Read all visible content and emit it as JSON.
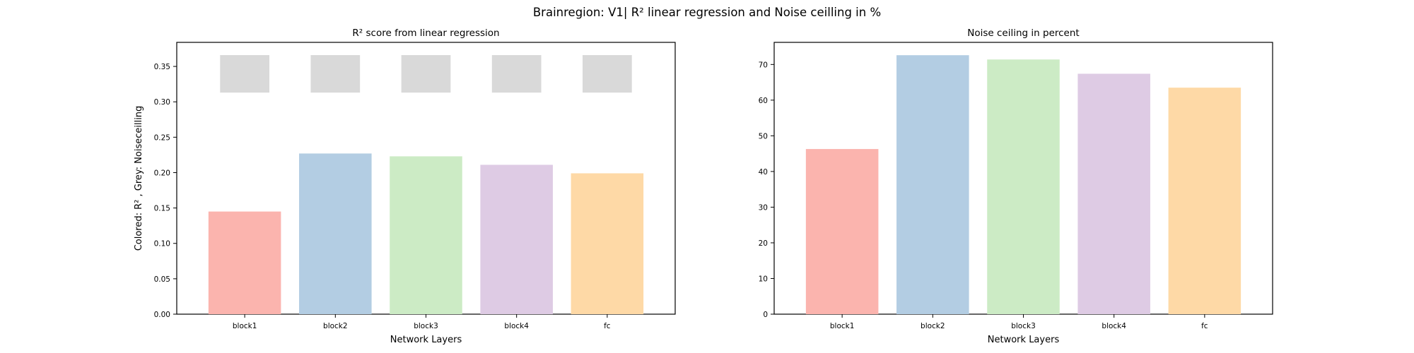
{
  "suptitle": "Brainregion: V1| R² linear regression and Noise ceilling in %",
  "chart_data": [
    {
      "type": "bar",
      "title": "R² score from linear regression",
      "xlabel": "Network Layers",
      "ylabel": "Colored: R² , Grey: Noiseceilling",
      "categories": [
        "block1",
        "block2",
        "block3",
        "block4",
        "fc"
      ],
      "series": [
        {
          "name": "",
          "role": "R²",
          "values": [
            0.145,
            0.227,
            0.223,
            0.211,
            0.199
          ]
        },
        {
          "name": "",
          "role": "noise ceiling (grey range)",
          "low": [
            0.313,
            0.313,
            0.313,
            0.313,
            0.313
          ],
          "high": [
            0.366,
            0.366,
            0.366,
            0.366,
            0.366
          ]
        }
      ],
      "ylim": [
        0,
        0.384
      ],
      "yticks": [
        0.0,
        0.05,
        0.1,
        0.15,
        0.2,
        0.25,
        0.3,
        0.35
      ],
      "ytick_labels": [
        "0.00",
        "0.05",
        "0.10",
        "0.15",
        "0.20",
        "0.25",
        "0.30",
        "0.35"
      ],
      "grid": false,
      "colors": [
        "#fbb4ae",
        "#b3cde3",
        "#ccebc5",
        "#decbe4",
        "#fed9a6"
      ],
      "noise_color": "#d9d9d9"
    },
    {
      "type": "bar",
      "title": "Noise ceiling in percent",
      "xlabel": "Network Layers",
      "ylabel": "",
      "categories": [
        "block1",
        "block2",
        "block3",
        "block4",
        "fc"
      ],
      "series": [
        {
          "name": "",
          "values": [
            46.3,
            72.6,
            71.4,
            67.4,
            63.5
          ]
        }
      ],
      "ylim": [
        0,
        76.2
      ],
      "yticks": [
        0,
        10,
        20,
        30,
        40,
        50,
        60,
        70
      ],
      "ytick_labels": [
        "0",
        "10",
        "20",
        "30",
        "40",
        "50",
        "60",
        "70"
      ],
      "grid": false,
      "colors": [
        "#fbb4ae",
        "#b3cde3",
        "#ccebc5",
        "#decbe4",
        "#fed9a6"
      ]
    }
  ]
}
